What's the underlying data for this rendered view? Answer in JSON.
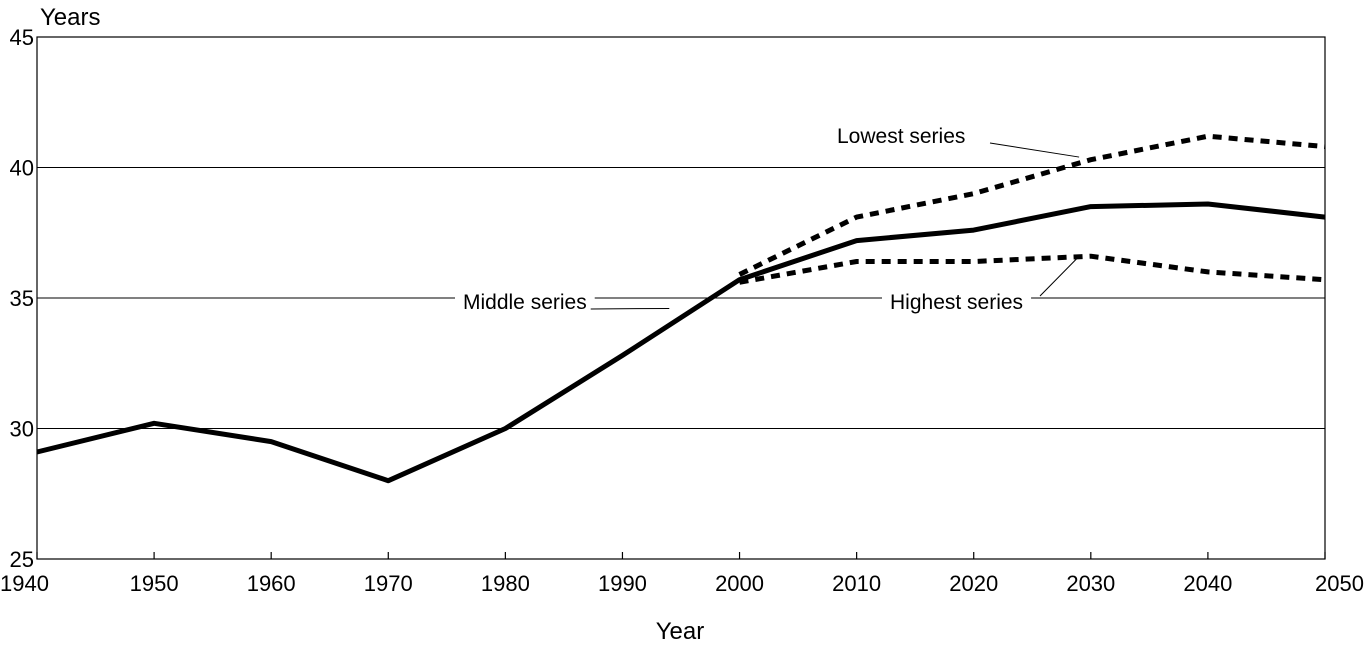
{
  "chart_data": {
    "type": "line",
    "title": "",
    "xlabel": "Year",
    "ylabel": "Years",
    "xlim": [
      1940,
      2050
    ],
    "ylim": [
      25,
      45
    ],
    "x_ticks": [
      1940,
      1950,
      1960,
      1970,
      1980,
      1990,
      2000,
      2010,
      2020,
      2030,
      2040,
      2050
    ],
    "y_ticks": [
      25,
      30,
      35,
      40,
      45
    ],
    "grid": "horizontal",
    "legend": "none",
    "series": [
      {
        "name": "Middle series",
        "style": "solid",
        "color": "#000000",
        "x": [
          1940,
          1950,
          1960,
          1970,
          1980,
          1990,
          2000,
          2010,
          2020,
          2030,
          2040,
          2050
        ],
        "y": [
          29.1,
          30.2,
          29.5,
          28.0,
          30.0,
          32.8,
          35.7,
          37.2,
          37.6,
          38.5,
          38.6,
          38.1
        ]
      },
      {
        "name": "Lowest series",
        "style": "dotted",
        "color": "#000000",
        "x": [
          2000,
          2010,
          2020,
          2030,
          2040,
          2050
        ],
        "y": [
          35.9,
          38.1,
          39.0,
          40.3,
          41.2,
          40.8
        ]
      },
      {
        "name": "Highest series",
        "style": "dotted",
        "color": "#000000",
        "x": [
          2000,
          2010,
          2020,
          2030,
          2040,
          2050
        ],
        "y": [
          35.6,
          36.4,
          36.4,
          36.6,
          36.0,
          35.7
        ]
      }
    ],
    "annotations": [
      {
        "text": "Lowest series",
        "points_to": {
          "x": 2029,
          "y": 40.4
        }
      },
      {
        "text": "Middle series",
        "points_to": {
          "x": 1994,
          "y": 34.6
        }
      },
      {
        "text": "Highest series",
        "points_to": {
          "x": 2029,
          "y": 36.6
        }
      }
    ]
  }
}
